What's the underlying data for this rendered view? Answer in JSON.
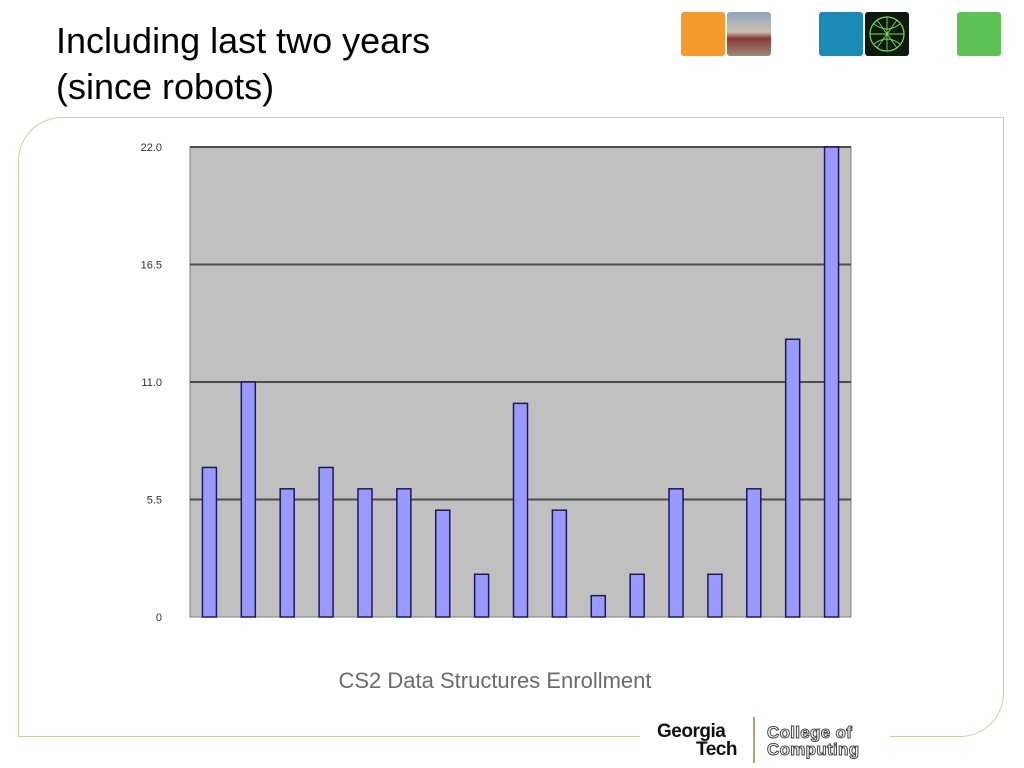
{
  "slide": {
    "title_line1": "Including last two years",
    "title_line2": "(since robots)",
    "caption": "CS2 Data Structures Enrollment"
  },
  "branding": {
    "logo_line1": "Georgia",
    "logo_line2": "Tech",
    "college_line1": "College of",
    "college_line2": "Computing",
    "accent_colors": [
      "#f59a2c",
      "#1b8bb6",
      "#5cc253"
    ]
  },
  "chart_data": {
    "type": "bar",
    "title": "",
    "xlabel": "",
    "ylabel": "",
    "ylim": [
      0,
      22
    ],
    "yticks": [
      "0",
      "5.5",
      "11.0",
      "16.5",
      "22.0"
    ],
    "ytick_values": [
      0,
      5.5,
      11,
      16.5,
      22
    ],
    "grid": true,
    "values": [
      7,
      11,
      6,
      7,
      6,
      6,
      5,
      2,
      10,
      5,
      1,
      2,
      6,
      2,
      6,
      13,
      22
    ],
    "colors": {
      "bar": "#9999ff",
      "bar_edge": "#1a1a5e",
      "plot_bg": "#c0c0c0",
      "grid": "#4d4d4d"
    }
  }
}
